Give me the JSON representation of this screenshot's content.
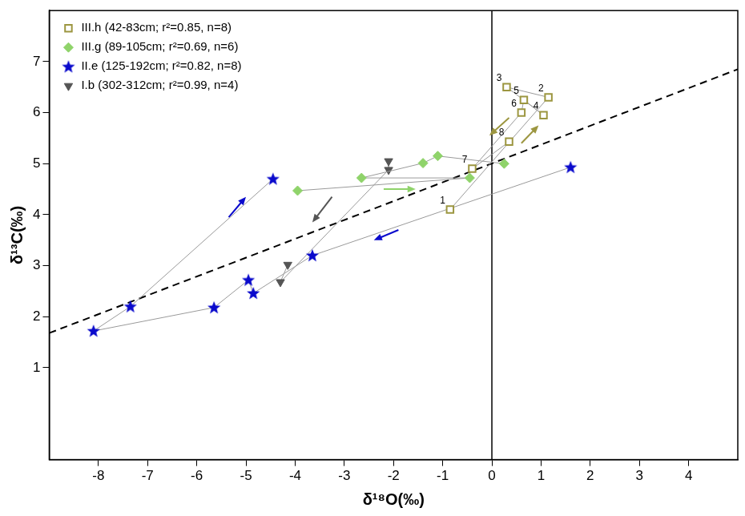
{
  "chart_data": {
    "type": "scatter",
    "x_label": "δ¹⁸O(‰)",
    "y_label": "δ¹³C(‰)",
    "xlim": [
      -9,
      5
    ],
    "ylim": [
      -0.8,
      8
    ],
    "xticks": [
      -8,
      -7,
      -6,
      -5,
      -4,
      -3,
      -2,
      -1,
      0,
      1,
      2,
      3,
      4
    ],
    "yticks": [
      1,
      2,
      3,
      4,
      5,
      6,
      7
    ],
    "grid": false,
    "legend": "upper left",
    "series": [
      {
        "name": "III.h (42-83cm; r²=0.85, n=8)",
        "color": "#9c9640",
        "marker": "square",
        "line_style": "solid",
        "x": [
          -0.85,
          1.15,
          0.3,
          1.05,
          0.65,
          0.6,
          -0.4,
          0.35
        ],
        "values": [
          4.1,
          6.3,
          6.5,
          5.95,
          6.25,
          6.0,
          4.9,
          5.43
        ],
        "point_labels": [
          "1",
          "2",
          "3",
          "4",
          "5",
          "6",
          "7",
          "8"
        ]
      },
      {
        "name": "III.g (89-105cm; r²=0.69, n=6)",
        "color": "#8fd36a",
        "marker": "diamond",
        "line_style": "solid",
        "x": [
          -3.95,
          -0.45,
          -2.65,
          -1.4,
          -1.1,
          0.25
        ],
        "values": [
          4.47,
          4.72,
          4.72,
          5.01,
          5.15,
          5.0
        ]
      },
      {
        "name": "II.e (125-192cm; r²=0.82, n=8)",
        "color": "#0a0acc",
        "marker": "star",
        "line_style": "solid",
        "x": [
          1.6,
          -3.65,
          -4.85,
          -4.95,
          -5.65,
          -8.1,
          -7.35,
          -4.45
        ],
        "values": [
          4.93,
          3.2,
          2.46,
          2.72,
          2.18,
          1.72,
          2.2,
          4.7
        ]
      },
      {
        "name": "I.b (302-312cm; r²=0.99, n=4)",
        "color": "#555555",
        "marker": "triangle_down",
        "line_style": "solid",
        "x": [
          -2.1,
          -2.1,
          -4.3,
          -4.15
        ],
        "values": [
          5.05,
          4.88,
          2.68,
          3.02
        ]
      }
    ],
    "trend_line": {
      "x": [
        -9,
        5
      ],
      "values": [
        1.68,
        6.85
      ],
      "color": "#000000",
      "line_style": "dashed"
    },
    "vline_x": 0,
    "arrows": [
      {
        "from": [
          -5.35,
          3.95
        ],
        "to": [
          -5.0,
          4.35
        ],
        "color": "#0a0acc"
      },
      {
        "from": [
          -1.9,
          3.7
        ],
        "to": [
          -2.4,
          3.5
        ],
        "color": "#0a0acc"
      },
      {
        "from": [
          -2.2,
          4.5
        ],
        "to": [
          -1.55,
          4.5
        ],
        "color": "#8fd36a"
      },
      {
        "from": [
          -3.25,
          4.35
        ],
        "to": [
          -3.65,
          3.85
        ],
        "color": "#555555"
      },
      {
        "from": [
          0.35,
          5.9
        ],
        "to": [
          -0.05,
          5.55
        ],
        "color": "#9c9640"
      },
      {
        "from": [
          0.6,
          5.4
        ],
        "to": [
          0.95,
          5.75
        ],
        "color": "#9c9640"
      }
    ]
  }
}
